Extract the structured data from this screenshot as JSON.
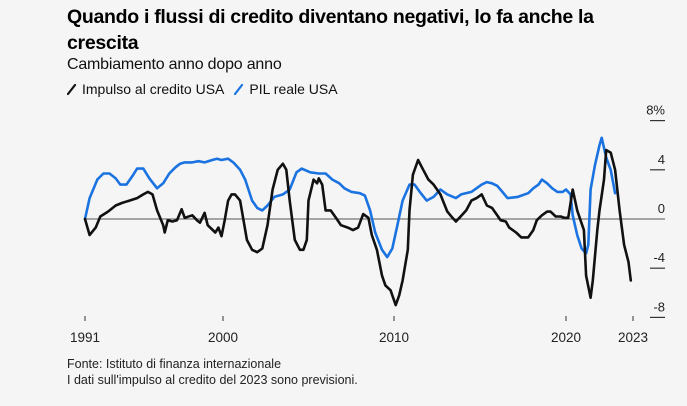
{
  "header": {
    "title": "Quando i flussi di credito diventano negativi, lo fa anche la crescita",
    "subtitle": "Cambiamento anno dopo anno"
  },
  "legend": [
    {
      "label": "Impulso al credito USA",
      "color": "#111111"
    },
    {
      "label": "PIL reale USA",
      "color": "#1a73e0"
    }
  ],
  "footer": {
    "source": "Fonte: Istituto di finanza internazionale",
    "note": "I dati sull'impulso al credito del 2023 sono previsioni."
  },
  "chart_data": {
    "type": "line",
    "title": "Quando i flussi di credito diventano negativi, lo fa anche la crescita",
    "subtitle": "Cambiamento anno dopo anno",
    "xlabel": "",
    "ylabel": "",
    "x_ticks": [
      1991,
      2000,
      2010,
      2020,
      2023
    ],
    "x_tick_labels": [
      "1991",
      "2000",
      "2010",
      "2020",
      "2023"
    ],
    "y_ticks": [
      8,
      4,
      0,
      -4,
      -8
    ],
    "y_tick_labels": [
      "8%",
      "4",
      "0",
      "-4",
      "-8"
    ],
    "ylim": [
      -8,
      8
    ],
    "xlim": [
      1991,
      2023
    ],
    "grid": false,
    "zero_line": true,
    "y_axis_position": "right",
    "legend_position": "top-left",
    "series": [
      {
        "name": "Impulso al credito USA",
        "color": "#111111",
        "points": [
          [
            1991.0,
            0.0
          ],
          [
            1991.3,
            -1.3
          ],
          [
            1991.7,
            -0.7
          ],
          [
            1992.0,
            0.2
          ],
          [
            1992.5,
            0.6
          ],
          [
            1993.0,
            1.1
          ],
          [
            1993.4,
            1.3
          ],
          [
            1993.9,
            1.5
          ],
          [
            1994.4,
            1.7
          ],
          [
            1994.8,
            2.0
          ],
          [
            1995.1,
            2.2
          ],
          [
            1995.4,
            2.0
          ],
          [
            1995.7,
            0.7
          ],
          [
            1996.1,
            -0.5
          ],
          [
            1996.2,
            -1.1
          ],
          [
            1996.4,
            -0.1
          ],
          [
            1996.7,
            -0.2
          ],
          [
            1997.0,
            -0.1
          ],
          [
            1997.3,
            0.8
          ],
          [
            1997.5,
            0.1
          ],
          [
            1998.0,
            0.3
          ],
          [
            1998.3,
            -0.1
          ],
          [
            1998.5,
            -0.3
          ],
          [
            1998.8,
            0.5
          ],
          [
            1999.0,
            -0.5
          ],
          [
            1999.5,
            -1.1
          ],
          [
            1999.7,
            -0.7
          ],
          [
            1999.9,
            -1.4
          ],
          [
            2000.1,
            -0.1
          ],
          [
            2000.3,
            1.5
          ],
          [
            2000.5,
            2.0
          ],
          [
            2000.7,
            2.0
          ],
          [
            2001.0,
            1.5
          ],
          [
            2001.2,
            -0.1
          ],
          [
            2001.4,
            -1.7
          ],
          [
            2001.7,
            -2.5
          ],
          [
            2002.0,
            -2.7
          ],
          [
            2002.3,
            -2.4
          ],
          [
            2002.6,
            -0.5
          ],
          [
            2002.9,
            2.4
          ],
          [
            2003.2,
            4.0
          ],
          [
            2003.5,
            4.5
          ],
          [
            2003.7,
            4.0
          ],
          [
            2003.9,
            1.5
          ],
          [
            2004.2,
            -1.7
          ],
          [
            2004.5,
            -2.5
          ],
          [
            2004.7,
            -2.5
          ],
          [
            2004.9,
            -1.7
          ],
          [
            2005.0,
            1.5
          ],
          [
            2005.3,
            3.2
          ],
          [
            2005.5,
            2.9
          ],
          [
            2005.6,
            3.3
          ],
          [
            2005.8,
            2.8
          ],
          [
            2006.0,
            0.7
          ],
          [
            2006.3,
            0.7
          ],
          [
            2006.6,
            0.1
          ],
          [
            2006.9,
            -0.5
          ],
          [
            2007.3,
            -0.7
          ],
          [
            2007.6,
            -0.9
          ],
          [
            2007.9,
            -0.7
          ],
          [
            2008.2,
            0.4
          ],
          [
            2008.5,
            0.1
          ],
          [
            2008.7,
            -1.3
          ],
          [
            2009.0,
            -2.5
          ],
          [
            2009.3,
            -4.6
          ],
          [
            2009.5,
            -5.4
          ],
          [
            2009.8,
            -5.8
          ],
          [
            2009.9,
            -6.2
          ],
          [
            2010.1,
            -7.0
          ],
          [
            2010.3,
            -6.2
          ],
          [
            2010.5,
            -5.0
          ],
          [
            2010.8,
            -2.5
          ],
          [
            2010.9,
            0.7
          ],
          [
            2011.1,
            3.6
          ],
          [
            2011.4,
            4.8
          ],
          [
            2011.7,
            4.0
          ],
          [
            2012.0,
            3.2
          ],
          [
            2012.3,
            2.8
          ],
          [
            2012.7,
            2.0
          ],
          [
            2013.1,
            0.6
          ],
          [
            2013.4,
            0.1
          ],
          [
            2013.6,
            -0.2
          ],
          [
            2013.8,
            0.1
          ],
          [
            2014.2,
            0.7
          ],
          [
            2014.5,
            1.5
          ],
          [
            2014.8,
            1.7
          ],
          [
            2015.1,
            2.0
          ],
          [
            2015.4,
            1.1
          ],
          [
            2015.7,
            0.9
          ],
          [
            2016.0,
            0.3
          ],
          [
            2016.2,
            -0.1
          ],
          [
            2016.5,
            -0.2
          ],
          [
            2016.7,
            -0.7
          ],
          [
            2017.1,
            -1.1
          ],
          [
            2017.4,
            -1.5
          ],
          [
            2017.8,
            -1.5
          ],
          [
            2018.1,
            -0.9
          ],
          [
            2018.3,
            -0.1
          ],
          [
            2018.6,
            0.3
          ],
          [
            2018.9,
            0.6
          ],
          [
            2019.1,
            0.6
          ],
          [
            2019.4,
            0.2
          ],
          [
            2019.7,
            0.2
          ],
          [
            2019.9,
            0.1
          ],
          [
            2020.1,
            0.1
          ],
          [
            2020.3,
            2.4
          ],
          [
            2020.5,
            0.7
          ],
          [
            2020.8,
            -0.9
          ],
          [
            2020.9,
            -4.6
          ],
          [
            2021.1,
            -6.4
          ],
          [
            2021.2,
            -5.0
          ],
          [
            2021.4,
            -0.9
          ],
          [
            2021.5,
            0.7
          ],
          [
            2021.7,
            3.2
          ],
          [
            2021.8,
            5.6
          ],
          [
            2022.0,
            5.4
          ],
          [
            2022.2,
            4.0
          ],
          [
            2022.4,
            0.7
          ],
          [
            2022.6,
            -2.1
          ],
          [
            2022.8,
            -3.5
          ],
          [
            2022.9,
            -5.0
          ]
        ]
      },
      {
        "name": "PIL reale USA",
        "color": "#1a73e0",
        "points": [
          [
            1991.0,
            0.0
          ],
          [
            1991.3,
            1.7
          ],
          [
            1991.8,
            3.2
          ],
          [
            1992.2,
            3.7
          ],
          [
            1992.6,
            3.7
          ],
          [
            1993.0,
            3.3
          ],
          [
            1993.3,
            2.8
          ],
          [
            1993.7,
            2.8
          ],
          [
            1994.1,
            3.5
          ],
          [
            1994.4,
            4.1
          ],
          [
            1994.8,
            4.1
          ],
          [
            1995.2,
            3.3
          ],
          [
            1995.7,
            2.5
          ],
          [
            1996.1,
            2.9
          ],
          [
            1996.5,
            3.7
          ],
          [
            1996.9,
            4.2
          ],
          [
            1997.2,
            4.5
          ],
          [
            1997.5,
            4.6
          ],
          [
            1998.0,
            4.6
          ],
          [
            1998.4,
            4.7
          ],
          [
            1998.8,
            4.6
          ],
          [
            1999.3,
            4.8
          ],
          [
            1999.6,
            4.9
          ],
          [
            1999.9,
            4.8
          ],
          [
            2000.3,
            4.9
          ],
          [
            2000.6,
            4.6
          ],
          [
            2001.0,
            4.0
          ],
          [
            2001.3,
            3.2
          ],
          [
            2001.7,
            1.5
          ],
          [
            2002.0,
            0.9
          ],
          [
            2002.3,
            0.7
          ],
          [
            2002.6,
            1.1
          ],
          [
            2003.0,
            1.8
          ],
          [
            2003.5,
            2.0
          ],
          [
            2003.9,
            2.4
          ],
          [
            2004.3,
            3.8
          ],
          [
            2004.6,
            4.1
          ],
          [
            2005.1,
            3.8
          ],
          [
            2005.6,
            3.7
          ],
          [
            2006.0,
            3.7
          ],
          [
            2006.4,
            3.2
          ],
          [
            2006.8,
            2.9
          ],
          [
            2007.1,
            2.5
          ],
          [
            2007.5,
            2.2
          ],
          [
            2008.0,
            2.1
          ],
          [
            2008.3,
            1.9
          ],
          [
            2008.6,
            0.7
          ],
          [
            2008.9,
            -1.1
          ],
          [
            2009.3,
            -2.5
          ],
          [
            2009.6,
            -3.1
          ],
          [
            2009.9,
            -2.4
          ],
          [
            2010.2,
            -0.5
          ],
          [
            2010.5,
            1.5
          ],
          [
            2010.9,
            2.8
          ],
          [
            2011.2,
            2.8
          ],
          [
            2011.5,
            2.2
          ],
          [
            2011.9,
            1.5
          ],
          [
            2012.3,
            1.8
          ],
          [
            2012.7,
            2.4
          ],
          [
            2013.1,
            2.0
          ],
          [
            2013.6,
            1.7
          ],
          [
            2013.9,
            2.0
          ],
          [
            2014.5,
            2.2
          ],
          [
            2015.1,
            2.8
          ],
          [
            2015.4,
            3.0
          ],
          [
            2015.7,
            2.9
          ],
          [
            2016.0,
            2.7
          ],
          [
            2016.3,
            2.2
          ],
          [
            2016.6,
            1.7
          ],
          [
            2017.2,
            1.8
          ],
          [
            2017.8,
            2.1
          ],
          [
            2018.1,
            2.5
          ],
          [
            2018.4,
            2.8
          ],
          [
            2018.6,
            3.2
          ],
          [
            2018.9,
            2.9
          ],
          [
            2019.2,
            2.5
          ],
          [
            2019.5,
            2.2
          ],
          [
            2019.8,
            2.2
          ],
          [
            2020.0,
            2.4
          ],
          [
            2020.2,
            2.0
          ],
          [
            2020.3,
            0.3
          ],
          [
            2020.5,
            -1.3
          ],
          [
            2020.7,
            -2.4
          ],
          [
            2020.9,
            -2.8
          ],
          [
            2021.0,
            -2.1
          ],
          [
            2021.1,
            2.4
          ],
          [
            2021.3,
            4.4
          ],
          [
            2021.5,
            6.0
          ],
          [
            2021.6,
            6.6
          ],
          [
            2021.8,
            5.0
          ],
          [
            2022.0,
            4.0
          ],
          [
            2022.2,
            2.1
          ]
        ]
      }
    ]
  }
}
